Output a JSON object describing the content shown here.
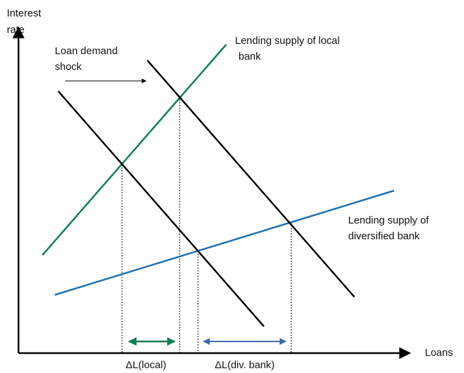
{
  "axes": {
    "y_label": [
      "Interest",
      "rate"
    ],
    "x_label": "Loans"
  },
  "shock_label": [
    "Loan demand",
    "shock"
  ],
  "local_supply_label": [
    "Lending supply of local",
    "bank"
  ],
  "diversified_supply_label": [
    "Lending supply of",
    "diversified bank"
  ],
  "delta_labels": {
    "local": "ΔL(local)",
    "diversified": "ΔL(div. bank)"
  }
}
